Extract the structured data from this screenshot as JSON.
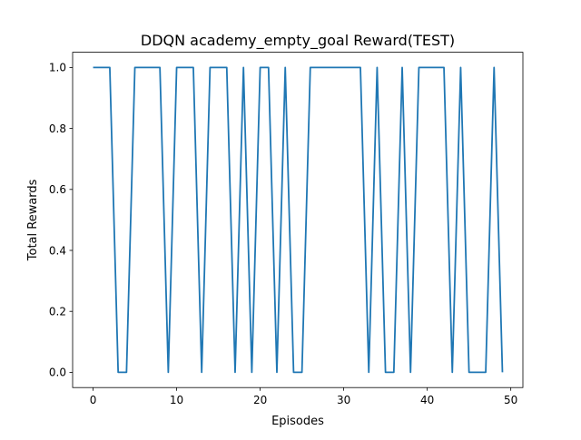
{
  "chart_data": {
    "type": "line",
    "title": "DDQN academy_empty_goal Reward(TEST)",
    "xlabel": "Episodes",
    "ylabel": "Total Rewards",
    "xlim": [
      -2.45,
      51.45
    ],
    "ylim": [
      -0.05,
      1.05
    ],
    "xticks": [
      0,
      10,
      20,
      30,
      40,
      50
    ],
    "yticks": [
      0.0,
      0.2,
      0.4,
      0.6,
      0.8,
      1.0
    ],
    "xtick_labels": [
      "0",
      "10",
      "20",
      "30",
      "40",
      "50"
    ],
    "ytick_labels": [
      "0.0",
      "0.2",
      "0.4",
      "0.6",
      "0.8",
      "1.0"
    ],
    "grid": false,
    "line_color": "#1f77b4",
    "series": [
      {
        "x": [
          0,
          1,
          2,
          3,
          4,
          5,
          6,
          7,
          8,
          9,
          10,
          11,
          12,
          13,
          14,
          15,
          16,
          17,
          18,
          19,
          20,
          21,
          22,
          23,
          24,
          25,
          26,
          27,
          28,
          29,
          30,
          31,
          32,
          33,
          34,
          35,
          36,
          37,
          38,
          39,
          40,
          41,
          42,
          43,
          44,
          45,
          46,
          47,
          48,
          49
        ],
        "values": [
          1,
          1,
          1,
          0,
          0,
          1,
          1,
          1,
          1,
          0,
          1,
          1,
          1,
          0,
          1,
          1,
          1,
          0,
          1,
          0,
          1,
          1,
          0,
          1,
          0,
          0,
          1,
          1,
          1,
          1,
          1,
          1,
          1,
          0,
          1,
          0,
          0,
          1,
          0,
          1,
          1,
          1,
          1,
          0,
          1,
          0,
          0,
          0,
          1,
          0
        ]
      }
    ]
  }
}
